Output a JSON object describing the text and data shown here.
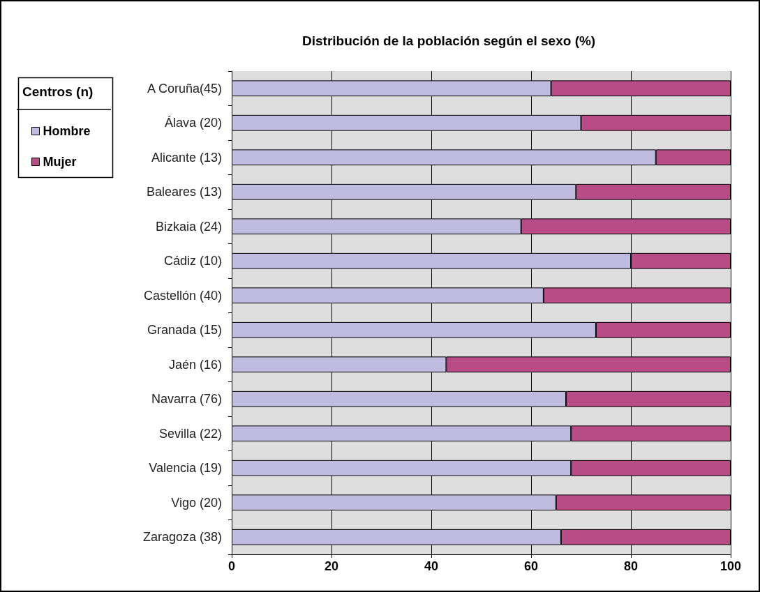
{
  "chart_data": {
    "type": "bar",
    "orientation": "horizontal",
    "stacked": true,
    "title": "Distribución de la población según el sexo (%)",
    "legend_title": "Centros (n)",
    "legend": "left",
    "categories": [
      "A Coruña(45)",
      "Álava (20)",
      "Alicante (13)",
      "Baleares (13)",
      "Bizkaia (24)",
      "Cádiz (10)",
      "Castellón (40)",
      "Granada (15)",
      "Jaén (16)",
      "Navarra (76)",
      "Sevilla (22)",
      "Valencia (19)",
      "Vigo (20)",
      "Zaragoza (38)"
    ],
    "series": [
      {
        "name": "Hombre",
        "color": "#c0bce0",
        "values": [
          64,
          70,
          85,
          69,
          58,
          80,
          62.5,
          73,
          43,
          67,
          68,
          68,
          65,
          66
        ]
      },
      {
        "name": "Mujer",
        "color": "#b84c86",
        "values": [
          36,
          30,
          15,
          31,
          42,
          20,
          37.5,
          27,
          57,
          33,
          32,
          32,
          35,
          34
        ]
      }
    ],
    "xlim": [
      0,
      100
    ],
    "xticks": [
      0,
      20,
      40,
      60,
      80,
      100
    ],
    "grid": "x"
  }
}
